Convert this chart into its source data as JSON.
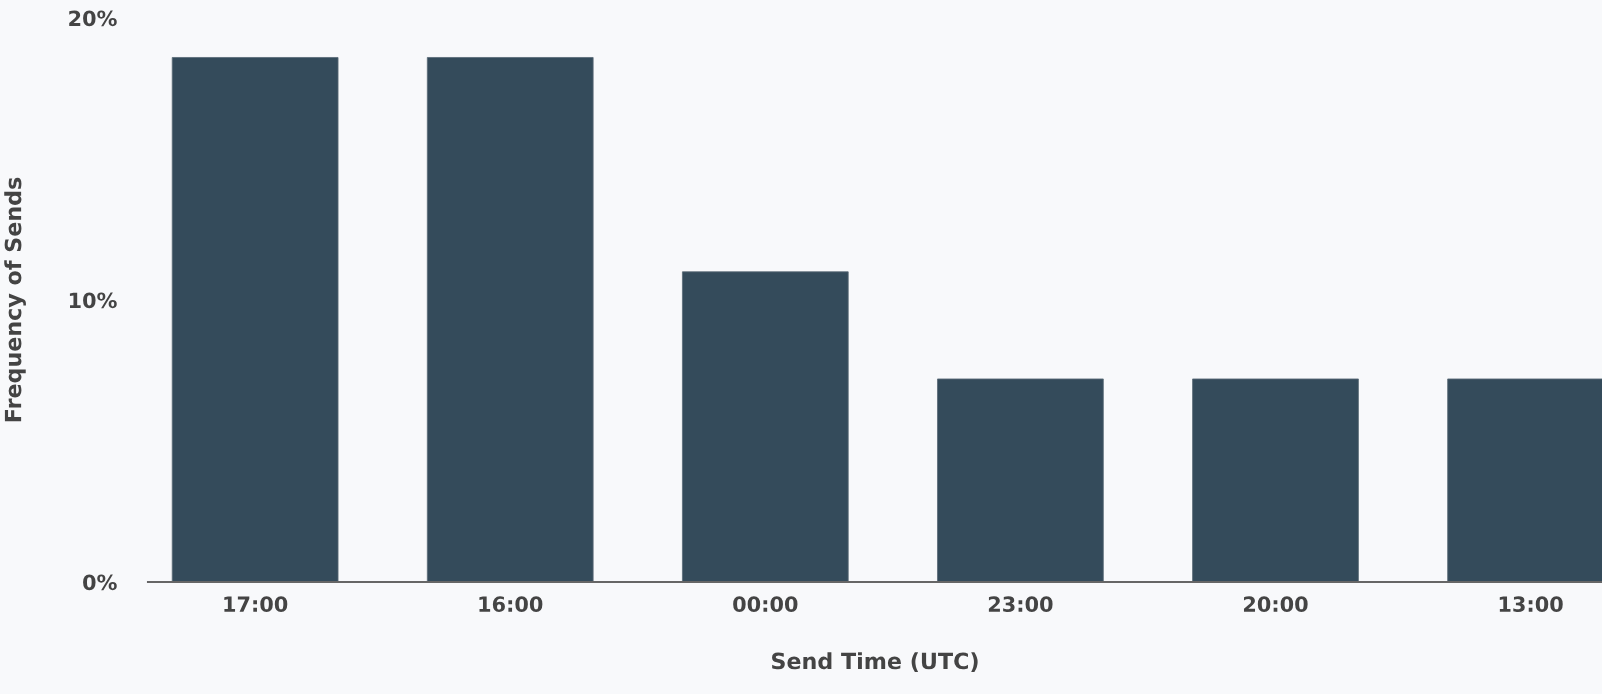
{
  "chart_data": {
    "type": "bar",
    "xlabel": "Send Time (UTC)",
    "ylabel": "Frequency of Sends",
    "categories": [
      "17:00",
      "16:00",
      "00:00",
      "23:00",
      "20:00",
      "13:00"
    ],
    "values": [
      18.6,
      18.6,
      11,
      7.2,
      7.2,
      7.2
    ],
    "color": "#344b5b",
    "ylim": [
      0,
      20
    ],
    "yticks": [
      {
        "value": 0,
        "label": "0%"
      },
      {
        "value": 10,
        "label": "10%"
      },
      {
        "value": 20,
        "label": "20%"
      }
    ],
    "grid": false
  }
}
